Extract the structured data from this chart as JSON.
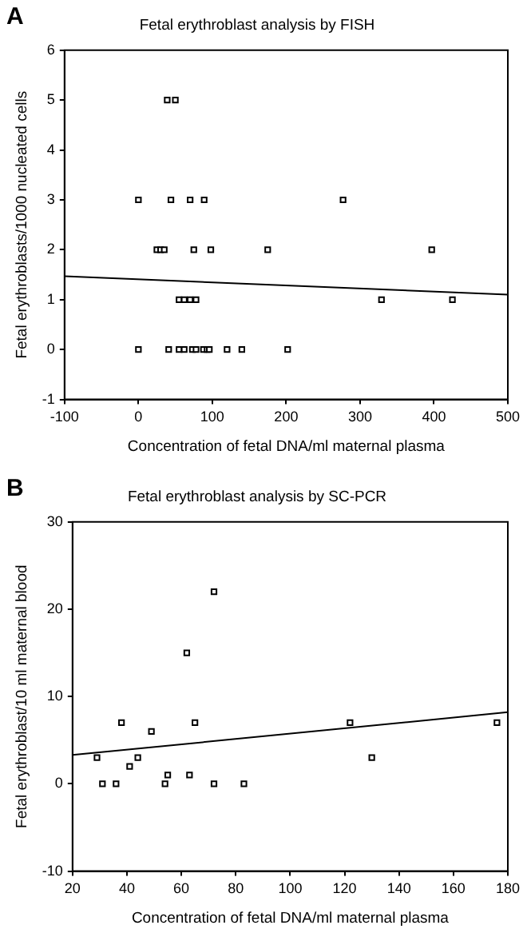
{
  "chart_data": [
    {
      "type": "scatter",
      "title": "Fetal erythroblast analysis by FISH",
      "xlabel": "Concentration of fetal DNA/ml maternal plasma",
      "ylabel": "Fetal erythroblasts/1000 nucleated cells",
      "annotations": [
        "A"
      ],
      "grid": false,
      "legend": false,
      "xlim": [
        -100,
        500
      ],
      "xticks": [
        -100,
        0,
        100,
        200,
        300,
        400,
        500
      ],
      "ylim": [
        -1,
        6
      ],
      "yticks": [
        -1,
        0,
        1,
        2,
        3,
        4,
        5,
        6
      ],
      "series": [
        {
          "marker": "square",
          "color": "#000000",
          "x": [
            39,
            50,
            0,
            44,
            70,
            89,
            277,
            25,
            30,
            35,
            75,
            98,
            175,
            397,
            55,
            62,
            70,
            78,
            329,
            425,
            0,
            41,
            55,
            62,
            73,
            78,
            88,
            93,
            96,
            120,
            140,
            202
          ],
          "values": [
            5,
            5,
            3,
            3,
            3,
            3,
            3,
            2,
            2,
            2,
            2,
            2,
            2,
            2,
            1,
            1,
            1,
            1,
            1,
            1,
            0,
            0,
            0,
            0,
            0,
            0,
            0,
            0,
            0,
            0,
            0,
            0
          ]
        },
        {
          "type": "line",
          "marker": "none",
          "color": "#000000",
          "x": [
            -100,
            500
          ],
          "values": [
            1.47,
            1.1
          ]
        }
      ]
    },
    {
      "type": "scatter",
      "title": "Fetal erythroblast analysis by SC-PCR",
      "xlabel": "Concentration of fetal DNA/ml maternal plasma",
      "ylabel": "Fetal erythroblast/10 ml maternal blood",
      "annotations": [
        "B"
      ],
      "grid": false,
      "legend": false,
      "xlim": [
        20,
        180
      ],
      "xticks": [
        20,
        40,
        60,
        80,
        100,
        120,
        140,
        160,
        180
      ],
      "ylim": [
        -10,
        30
      ],
      "yticks": [
        -10,
        0,
        10,
        20,
        30
      ],
      "series": [
        {
          "marker": "square",
          "color": "#000000",
          "x": [
            29,
            31,
            36,
            38,
            41,
            44,
            49,
            54,
            55,
            62,
            63,
            65,
            72,
            72,
            83,
            122,
            130,
            176
          ],
          "values": [
            3,
            0,
            0,
            7,
            2,
            3,
            6,
            0,
            1,
            15,
            1,
            7,
            22,
            0,
            0,
            7,
            3,
            7
          ]
        },
        {
          "type": "line",
          "marker": "none",
          "color": "#000000",
          "x": [
            20,
            180
          ],
          "values": [
            3.3,
            8.2
          ]
        }
      ]
    }
  ]
}
